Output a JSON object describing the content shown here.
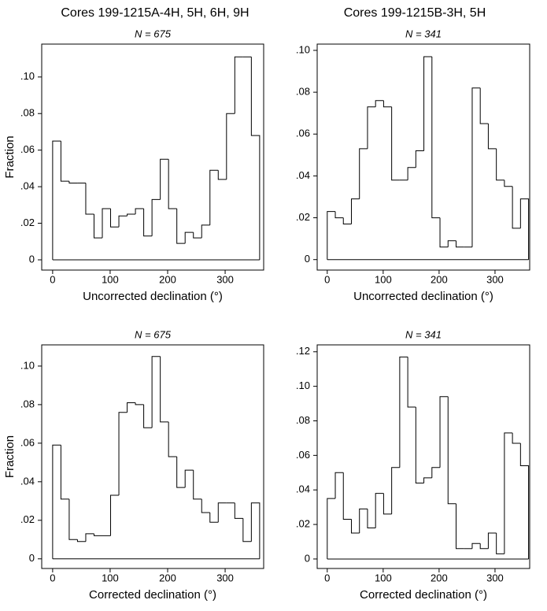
{
  "column_titles": [
    "Cores  199-1215A-4H, 5H, 6H, 9H",
    "Cores 199-1215B-3H, 5H"
  ],
  "chart_data": [
    {
      "type": "histogram",
      "title": "N = 675",
      "xlabel": "Uncorrected declination (°)",
      "ylabel": "Fraction",
      "bins": [
        0,
        14.4,
        28.8,
        43.2,
        57.6,
        72,
        86.4,
        100.8,
        115.2,
        129.6,
        144,
        158.4,
        172.8,
        187.2,
        201.6,
        216,
        230.4,
        244.8,
        259.2,
        273.6,
        288,
        302.4,
        316.8,
        331.2,
        345.6,
        360
      ],
      "values": [
        0.065,
        0.043,
        0.042,
        0.042,
        0.025,
        0.012,
        0.028,
        0.018,
        0.024,
        0.025,
        0.028,
        0.013,
        0.033,
        0.055,
        0.028,
        0.009,
        0.015,
        0.012,
        0.019,
        0.049,
        0.044,
        0.08,
        0.111,
        0.111,
        0.068
      ],
      "color": "#000000",
      "xlim": [
        -19,
        367
      ],
      "xticks": [
        0,
        100,
        200,
        300
      ],
      "ylim": [
        -0.0056,
        0.118
      ],
      "yticks": [
        0,
        {
          "value": 0.02,
          "label": ".02"
        },
        {
          "value": 0.04,
          "label": ".04"
        },
        {
          "value": 0.06,
          "label": ".06"
        },
        {
          "value": 0.08,
          "label": ".08"
        },
        {
          "value": 0.1,
          "label": ".10"
        }
      ]
    },
    {
      "type": "histogram",
      "title": "N = 341",
      "xlabel": "Uncorrected declination (°)",
      "bins": [
        0,
        14.4,
        28.8,
        43.2,
        57.6,
        72,
        86.4,
        100.8,
        115.2,
        129.6,
        144,
        158.4,
        172.8,
        187.2,
        201.6,
        216,
        230.4,
        244.8,
        259.2,
        273.6,
        288,
        302.4,
        316.8,
        331.2,
        345.6,
        360
      ],
      "values": [
        0.023,
        0.02,
        0.017,
        0.029,
        0.053,
        0.073,
        0.076,
        0.073,
        0.038,
        0.038,
        0.044,
        0.052,
        0.097,
        0.02,
        0.006,
        0.009,
        0.006,
        0.006,
        0.082,
        0.065,
        0.053,
        0.038,
        0.035,
        0.015,
        0.029
      ],
      "color": "#000000",
      "xlim": [
        -18,
        362
      ],
      "xticks": [
        0,
        100,
        200,
        300
      ],
      "ylim": [
        -0.005,
        0.103
      ],
      "yticks": [
        0,
        {
          "value": 0.02,
          "label": ".02"
        },
        {
          "value": 0.04,
          "label": ".04"
        },
        {
          "value": 0.06,
          "label": ".06"
        },
        {
          "value": 0.08,
          "label": ".08"
        },
        {
          "value": 0.1,
          "label": ".10"
        }
      ]
    },
    {
      "type": "histogram",
      "title": "N = 675",
      "xlabel": "Corrected declination (°)",
      "ylabel": "Fraction",
      "bins": [
        0,
        14.4,
        28.8,
        43.2,
        57.6,
        72,
        86.4,
        100.8,
        115.2,
        129.6,
        144,
        158.4,
        172.8,
        187.2,
        201.6,
        216,
        230.4,
        244.8,
        259.2,
        273.6,
        288,
        302.4,
        316.8,
        331.2,
        345.6,
        360
      ],
      "values": [
        0.059,
        0.031,
        0.01,
        0.009,
        0.013,
        0.012,
        0.012,
        0.033,
        0.076,
        0.081,
        0.08,
        0.068,
        0.105,
        0.071,
        0.053,
        0.037,
        0.046,
        0.031,
        0.024,
        0.019,
        0.029,
        0.029,
        0.021,
        0.009,
        0.029
      ],
      "color": "#000000",
      "xlim": [
        -19,
        367
      ],
      "xticks": [
        0,
        100,
        200,
        300
      ],
      "ylim": [
        -0.005,
        0.111
      ],
      "yticks": [
        0,
        {
          "value": 0.02,
          "label": ".02"
        },
        {
          "value": 0.04,
          "label": ".04"
        },
        {
          "value": 0.06,
          "label": ".06"
        },
        {
          "value": 0.08,
          "label": ".08"
        },
        {
          "value": 0.1,
          "label": ".10"
        }
      ]
    },
    {
      "type": "histogram",
      "title": "N = 341",
      "xlabel": "Corrected declination (°)",
      "bins": [
        0,
        14.4,
        28.8,
        43.2,
        57.6,
        72,
        86.4,
        100.8,
        115.2,
        129.6,
        144,
        158.4,
        172.8,
        187.2,
        201.6,
        216,
        230.4,
        244.8,
        259.2,
        273.6,
        288,
        302.4,
        316.8,
        331.2,
        345.6,
        360
      ],
      "values": [
        0.035,
        0.05,
        0.023,
        0.015,
        0.029,
        0.018,
        0.038,
        0.026,
        0.053,
        0.117,
        0.088,
        0.044,
        0.047,
        0.053,
        0.094,
        0.032,
        0.006,
        0.006,
        0.009,
        0.006,
        0.015,
        0.003,
        0.073,
        0.067,
        0.054
      ],
      "color": "#000000",
      "xlim": [
        -18,
        362
      ],
      "xticks": [
        0,
        100,
        200,
        300
      ],
      "ylim": [
        -0.0055,
        0.124
      ],
      "yticks": [
        0,
        {
          "value": 0.02,
          "label": ".02"
        },
        {
          "value": 0.04,
          "label": ".04"
        },
        {
          "value": 0.06,
          "label": ".06"
        },
        {
          "value": 0.08,
          "label": ".08"
        },
        {
          "value": 0.1,
          "label": ".10"
        },
        {
          "value": 0.12,
          "label": ".12"
        }
      ]
    }
  ]
}
